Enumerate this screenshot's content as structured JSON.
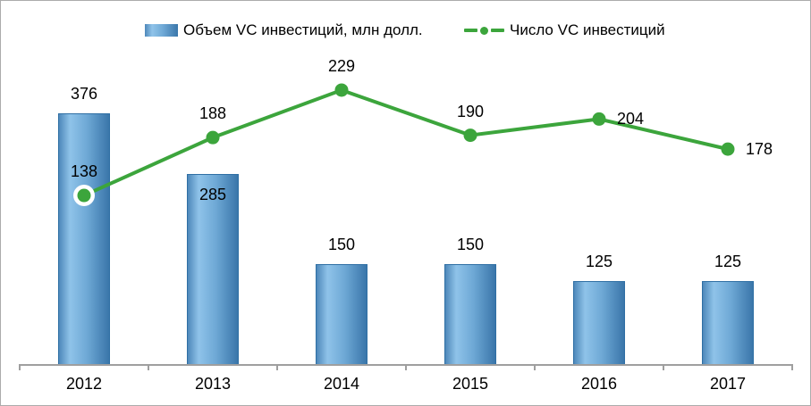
{
  "chart_data": {
    "type": "bar",
    "subtype": "bar-line-combo",
    "categories": [
      "2012",
      "2013",
      "2014",
      "2015",
      "2016",
      "2017"
    ],
    "series": [
      {
        "name": "Объем VC инвестиций, млн долл.",
        "type": "bar",
        "values": [
          376,
          285,
          150,
          150,
          125,
          125
        ],
        "color_light": "#8fc3e9",
        "color_dark": "#3a76aa",
        "label_placement": [
          "above",
          "inside",
          "above",
          "above",
          "above",
          "above"
        ]
      },
      {
        "name": "Число VC инвестиций",
        "type": "line",
        "values": [
          138,
          188,
          229,
          190,
          204,
          178
        ],
        "color": "#3ca53c",
        "marker": "circle",
        "first_marker_ring": "#ffffff",
        "label_placement": [
          "above",
          "above",
          "above",
          "above",
          "right",
          "right"
        ]
      }
    ],
    "title": "",
    "xlabel": "",
    "ylabel": "",
    "legend_position": "top",
    "grid": false,
    "value_axis_visible": false,
    "axis_color": "#9f9f9f",
    "text_color": "#000000"
  }
}
